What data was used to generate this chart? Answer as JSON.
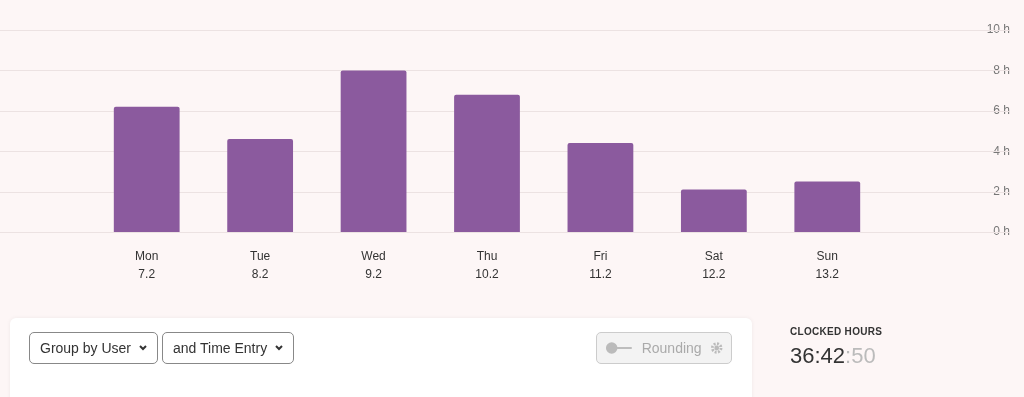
{
  "chart_data": {
    "type": "bar",
    "categories": [
      "Mon\n7.2",
      "Tue\n8.2",
      "Wed\n9.2",
      "Thu\n10.2",
      "Fri\n11.2",
      "Sat\n12.2",
      "Sun\n13.2"
    ],
    "values": [
      6.2,
      4.6,
      8.0,
      6.8,
      4.4,
      2.1,
      2.5
    ],
    "color": "#8b5a9e",
    "ylim": [
      0,
      10
    ],
    "yticks": [
      {
        "value": 0,
        "label": "0 h"
      },
      {
        "value": 2,
        "label": "2 h"
      },
      {
        "value": 4,
        "label": "4 h"
      },
      {
        "value": 6,
        "label": "6 h"
      },
      {
        "value": 8,
        "label": "8 h"
      },
      {
        "value": 10,
        "label": "10 h"
      }
    ],
    "grid": "y",
    "legend": false,
    "annotations": [
      "Group by User",
      "and Time Entry",
      "Rounding",
      "CLOCKED HOURS",
      "36:42:50"
    ]
  }
}
